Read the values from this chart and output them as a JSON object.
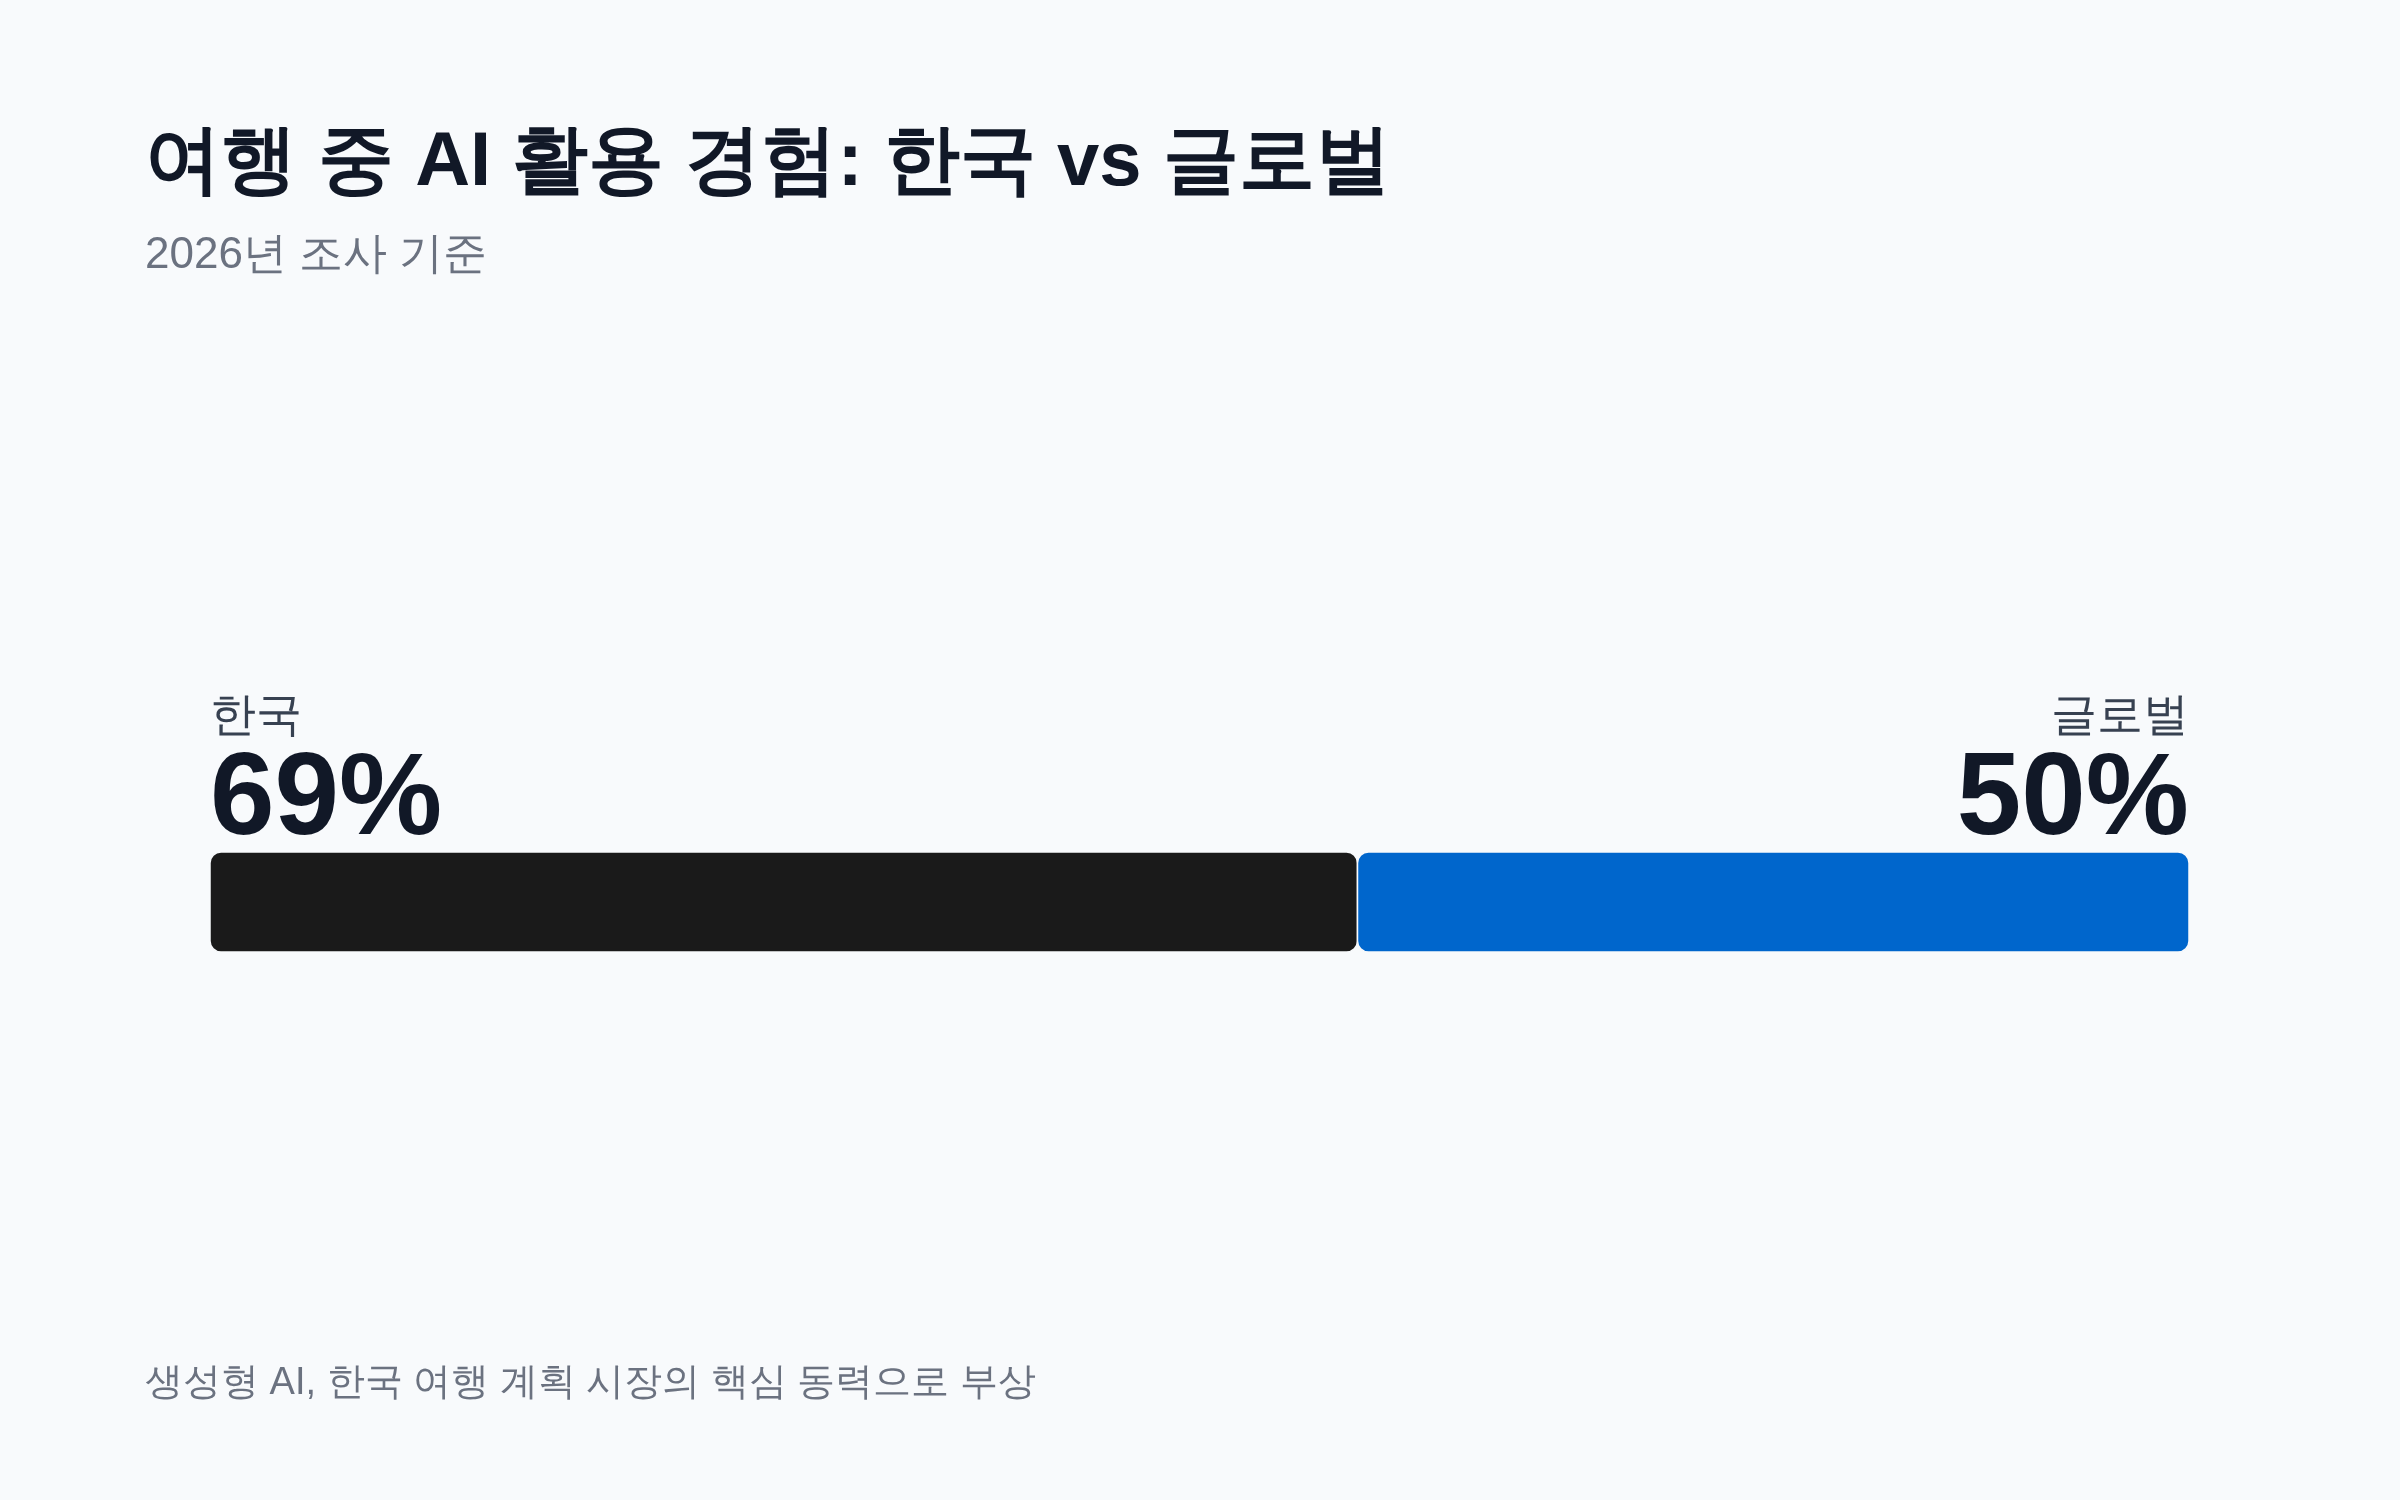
{
  "chart_data": {
    "type": "bar",
    "orientation": "horizontal",
    "stacked": true,
    "title": "여행 중 AI 활용 경험: 한국 vs 글로벌",
    "subtitle": "2026년 조사 기준",
    "categories": [
      null
    ],
    "series": [
      {
        "name": "한국",
        "color": "#1a1a1a",
        "values": [
          69
        ],
        "value_labels": [
          "69%"
        ]
      },
      {
        "name": "글로벌",
        "color": "#0066cc",
        "values": [
          50
        ],
        "value_labels": [
          "50%"
        ]
      }
    ],
    "tick_labels": false,
    "annotations": [
      "생성형 AI, 한국 여행 계획 시장의 핵심 동력으로 부상"
    ]
  }
}
